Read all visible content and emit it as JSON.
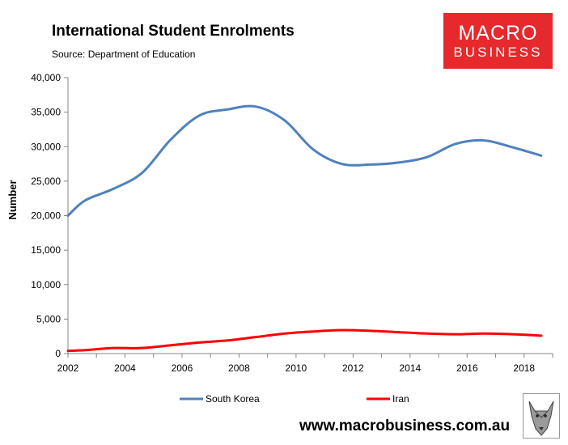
{
  "header": {
    "title": "International Student Enrolments",
    "source": "Source: Department of Education"
  },
  "branding": {
    "logo_line1": "MACRO",
    "logo_line2": "BUSINESS",
    "site_url": "www.macrobusiness.com.au"
  },
  "colors": {
    "south_korea": "#4f81bd",
    "iran": "#ff0000",
    "logo_bg": "#e5292d"
  },
  "chart_data": {
    "type": "line",
    "title": "International Student Enrolments",
    "subtitle": "Source: Department of Education",
    "xlabel": "",
    "ylabel": "Number",
    "xlim": [
      2002,
      2019
    ],
    "ylim": [
      0,
      40000
    ],
    "x_ticks": [
      2002,
      2004,
      2006,
      2008,
      2010,
      2012,
      2014,
      2016,
      2018
    ],
    "x_tick_labels": [
      "2002",
      "2004",
      "2006",
      "2008",
      "2010",
      "2012",
      "2014",
      "2016",
      "2018"
    ],
    "y_ticks": [
      0,
      5000,
      10000,
      15000,
      20000,
      25000,
      30000,
      35000,
      40000
    ],
    "y_tick_labels": [
      "0",
      "5,000",
      "10,000",
      "15,000",
      "20,000",
      "25,000",
      "30,000",
      "35,000",
      "40,000"
    ],
    "grid": false,
    "legend": "bottom",
    "series": [
      {
        "name": "South Korea",
        "color": "#4f81bd",
        "x": [
          2002,
          2002.6,
          2003.6,
          2004.6,
          2005.6,
          2006.6,
          2007.6,
          2008.6,
          2009.6,
          2010.6,
          2011.6,
          2012.6,
          2013.6,
          2014.6,
          2015.6,
          2016.6,
          2017.6,
          2018.6
        ],
        "y": [
          20000,
          22200,
          23900,
          26200,
          31000,
          34500,
          35400,
          35800,
          33800,
          29600,
          27500,
          27400,
          27700,
          28500,
          30400,
          30900,
          29900,
          28700
        ]
      },
      {
        "name": "Iran",
        "color": "#ff0000",
        "x": [
          2002,
          2002.6,
          2003.6,
          2004.6,
          2005.6,
          2006.6,
          2007.6,
          2008.6,
          2009.6,
          2010.6,
          2011.6,
          2012.6,
          2013.6,
          2014.6,
          2015.6,
          2016.6,
          2017.6,
          2018.6
        ],
        "y": [
          400,
          500,
          800,
          800,
          1200,
          1600,
          1900,
          2400,
          2900,
          3200,
          3400,
          3300,
          3100,
          2900,
          2800,
          2900,
          2800,
          2600
        ]
      }
    ]
  }
}
